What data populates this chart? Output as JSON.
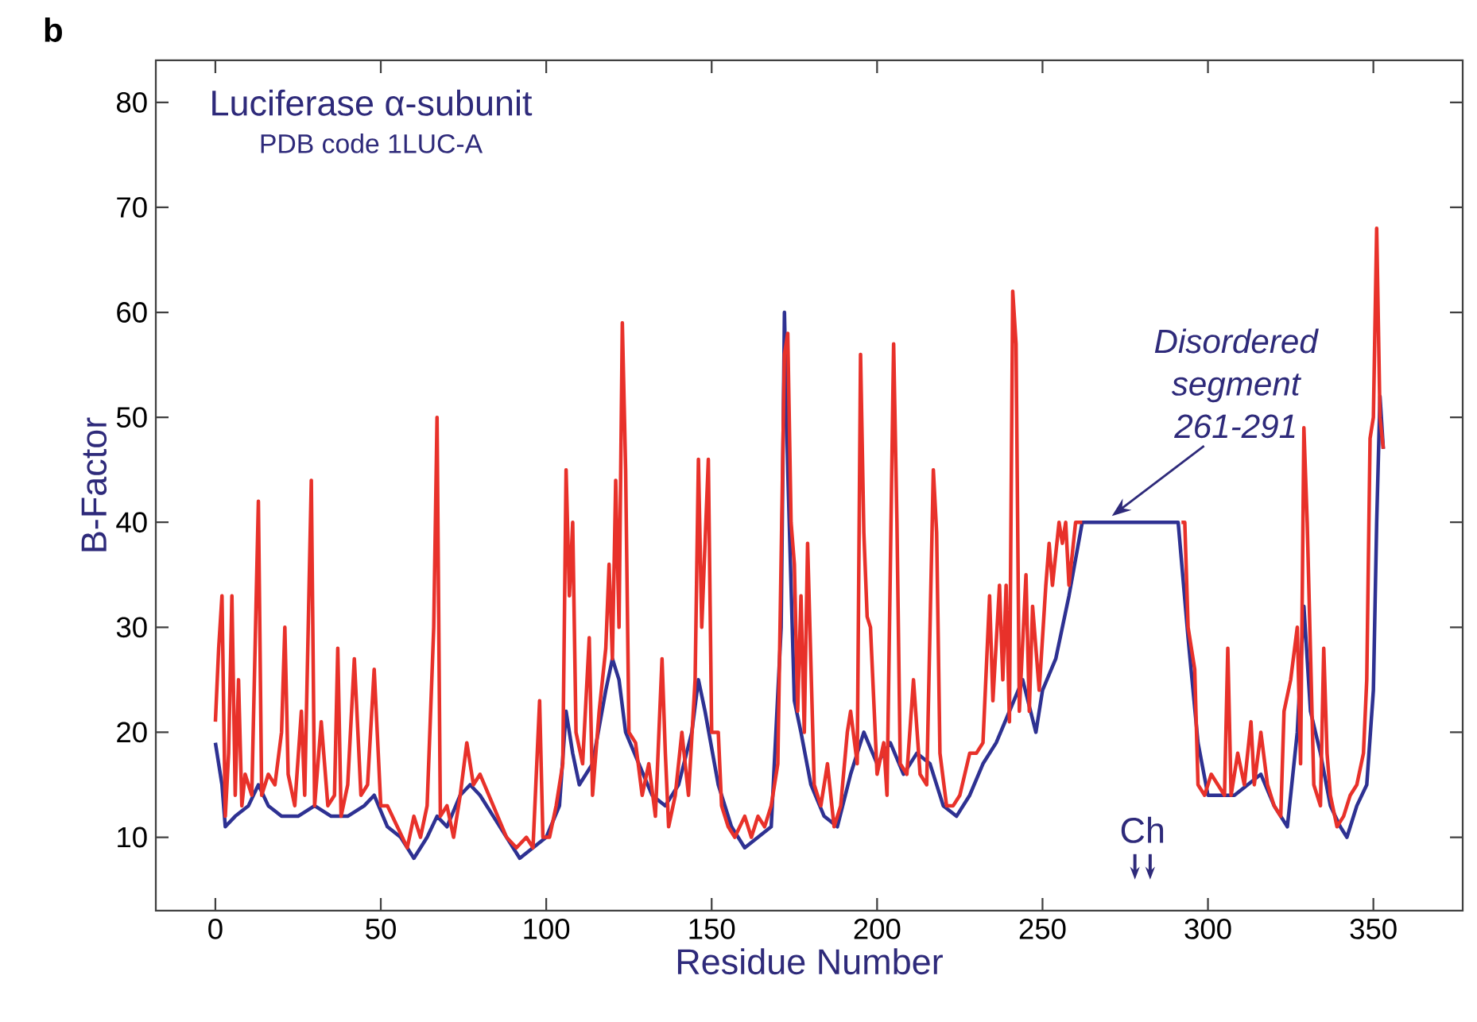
{
  "chart_data": {
    "type": "line",
    "title": "Luciferase α-subunit",
    "subtitle": "PDB code 1LUC-A",
    "xlabel": "Residue Number",
    "ylabel": "B-Factor",
    "annotations": [
      "b",
      {
        "text": "*Disordered segment 261-291*",
        "x": 270,
        "y": 40
      },
      "Ch"
    ],
    "xlim": [
      -18,
      377
    ],
    "ylim": [
      3,
      84
    ],
    "xticks": [
      0,
      50,
      100,
      150,
      200,
      250,
      300,
      350
    ],
    "yticks": [
      10,
      20,
      30,
      40,
      50,
      60,
      70,
      80
    ],
    "series": [
      {
        "color": "#2e3192",
        "x": [
          0,
          2,
          3,
          6,
          10,
          13,
          16,
          20,
          25,
          30,
          35,
          40,
          45,
          48,
          52,
          56,
          60,
          64,
          67,
          70,
          74,
          77,
          80,
          84,
          88,
          92,
          96,
          100,
          104,
          106,
          108,
          110,
          114,
          118,
          120,
          122,
          124,
          128,
          132,
          136,
          140,
          144,
          146,
          148,
          152,
          156,
          160,
          164,
          168,
          171,
          172,
          173,
          175,
          177,
          180,
          184,
          188,
          192,
          196,
          200,
          204,
          208,
          212,
          216,
          220,
          224,
          228,
          232,
          236,
          240,
          244,
          248,
          250,
          254,
          258,
          262,
          291,
          294,
          297,
          300,
          304,
          308,
          312,
          316,
          320,
          324,
          327,
          329,
          331,
          334,
          337,
          340,
          342,
          345,
          348,
          350,
          351,
          352,
          353
        ],
        "values": [
          19,
          15,
          11,
          12,
          13,
          15,
          13,
          12,
          12,
          13,
          12,
          12,
          13,
          14,
          11,
          10,
          8,
          10,
          12,
          11,
          14,
          15,
          14,
          12,
          10,
          8,
          9,
          10,
          13,
          22,
          18,
          15,
          17,
          24,
          27,
          25,
          20,
          17,
          14,
          13,
          15,
          20,
          25,
          22,
          15,
          11,
          9,
          10,
          11,
          30,
          60,
          45,
          23,
          20,
          15,
          12,
          11,
          16,
          20,
          17,
          19,
          16,
          18,
          17,
          13,
          12,
          14,
          17,
          19,
          22,
          25,
          20,
          24,
          27,
          33,
          40,
          40,
          29,
          19,
          14,
          14,
          14,
          15,
          16,
          13,
          11,
          20,
          32,
          22,
          18,
          13,
          11,
          10,
          13,
          15,
          24,
          40,
          52,
          47
        ]
      },
      {
        "color": "#e8312a",
        "x": [
          0,
          1,
          2,
          3,
          4,
          5,
          6,
          7,
          8,
          9,
          11,
          13,
          14,
          16,
          18,
          20,
          21,
          22,
          24,
          26,
          27,
          29,
          30,
          32,
          34,
          36,
          37,
          38,
          40,
          42,
          44,
          46,
          48,
          50,
          52,
          55,
          58,
          60,
          62,
          64,
          66,
          67,
          68,
          70,
          72,
          74,
          76,
          78,
          80,
          84,
          88,
          91,
          94,
          96,
          98,
          99,
          101,
          103,
          105,
          106,
          107,
          108,
          109,
          111,
          113,
          114,
          116,
          118,
          119,
          120,
          121,
          122,
          123,
          124,
          125,
          127,
          129,
          131,
          133,
          135,
          136,
          137,
          139,
          141,
          143,
          145,
          146,
          147,
          149,
          150,
          152,
          153,
          155,
          157,
          160,
          162,
          164,
          166,
          168,
          170,
          172,
          173,
          174,
          175,
          176,
          177,
          178,
          179,
          181,
          183,
          185,
          187,
          189,
          191,
          192,
          194,
          195,
          196,
          197,
          198,
          200,
          202,
          203,
          205,
          206,
          207,
          209,
          211,
          213,
          215,
          217,
          218,
          219,
          221,
          223,
          225,
          228,
          230,
          232,
          234,
          235,
          237,
          238,
          239,
          240,
          241,
          242,
          243,
          245,
          246,
          247,
          249,
          251,
          252,
          253,
          255,
          256,
          257,
          258,
          260,
          262,
          276,
          292,
          293,
          294,
          296,
          297,
          299,
          301,
          303,
          305,
          306,
          307,
          309,
          311,
          313,
          314,
          316,
          318,
          320,
          322,
          323,
          325,
          327,
          328,
          329,
          330,
          332,
          334,
          335,
          336,
          337,
          339,
          341,
          343,
          345,
          347,
          348,
          349,
          350,
          351,
          352,
          353
        ],
        "values": [
          21,
          28,
          33,
          12,
          18,
          33,
          14,
          25,
          13,
          16,
          14,
          42,
          14,
          16,
          15,
          20,
          30,
          16,
          13,
          22,
          14,
          44,
          13,
          21,
          13,
          14,
          28,
          12,
          15,
          27,
          14,
          15,
          26,
          13,
          13,
          11,
          9,
          12,
          10,
          13,
          30,
          50,
          12,
          13,
          10,
          14,
          19,
          15,
          16,
          13,
          10,
          9,
          10,
          9,
          23,
          10,
          10,
          13,
          17,
          45,
          33,
          40,
          20,
          17,
          29,
          14,
          22,
          28,
          36,
          27,
          44,
          30,
          59,
          45,
          20,
          19,
          14,
          17,
          12,
          27,
          18,
          11,
          14,
          20,
          14,
          25,
          46,
          30,
          46,
          20,
          20,
          13,
          11,
          10,
          12,
          10,
          12,
          11,
          13,
          17,
          56,
          58,
          40,
          36,
          22,
          33,
          20,
          38,
          15,
          13,
          17,
          11,
          13,
          20,
          22,
          17,
          56,
          39,
          31,
          30,
          16,
          19,
          14,
          57,
          40,
          17,
          16,
          25,
          16,
          15,
          45,
          39,
          18,
          13,
          13,
          14,
          18,
          18,
          19,
          33,
          23,
          34,
          25,
          34,
          21,
          62,
          57,
          22,
          35,
          22,
          32,
          24,
          34,
          38,
          34,
          40,
          38,
          40,
          34,
          40,
          40,
          null,
          40,
          40,
          30,
          26,
          15,
          14,
          16,
          15,
          14,
          28,
          14,
          18,
          15,
          21,
          15,
          20,
          15,
          13,
          12,
          22,
          25,
          30,
          17,
          49,
          40,
          15,
          13,
          28,
          18,
          14,
          11,
          12,
          14,
          15,
          18,
          25,
          48,
          50,
          68,
          50,
          47
        ]
      }
    ]
  }
}
